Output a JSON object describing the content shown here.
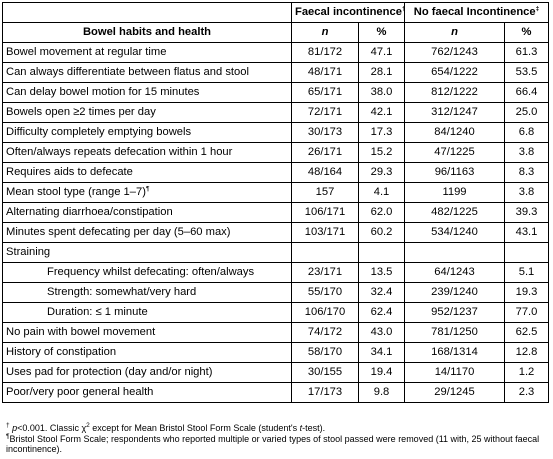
{
  "table": {
    "group_headers": {
      "faecal": "Faecal incontinence",
      "faecal_mark": "†",
      "no_faecal": "No faecal Incontinence",
      "no_faecal_mark": "‡"
    },
    "sub_headers": {
      "label": "Bowel habits and health",
      "n1": "n",
      "pct1": "%",
      "n2": "n",
      "pct2": "%"
    },
    "rows": [
      {
        "label": "Bowel movement at regular time",
        "n1": "81/172",
        "p1": "47.1",
        "n2": "762/1243",
        "p2": "61.3"
      },
      {
        "label": "Can always differentiate between flatus and stool",
        "n1": "48/171",
        "p1": "28.1",
        "n2": "654/1222",
        "p2": "53.5"
      },
      {
        "label": "Can delay bowel motion for 15 minutes",
        "n1": "65/171",
        "p1": "38.0",
        "n2": "812/1222",
        "p2": "66.4"
      },
      {
        "label": "Bowels open ≥2 times per day",
        "n1": "72/171",
        "p1": "42.1",
        "n2": "312/1247",
        "p2": "25.0"
      },
      {
        "label": "Difficulty completely emptying bowels",
        "n1": "30/173",
        "p1": "17.3",
        "n2": "84/1240",
        "p2": "6.8"
      },
      {
        "label": "Often/always repeats defecation within 1 hour",
        "n1": "26/171",
        "p1": "15.2",
        "n2": "47/1225",
        "p2": "3.8"
      },
      {
        "label": "Requires aids to defecate",
        "n1": "48/164",
        "p1": "29.3",
        "n2": "96/1163",
        "p2": "8.3"
      },
      {
        "label": "Mean stool type (range 1–7)¶",
        "n1": "157",
        "p1": "4.1",
        "n2": "1199",
        "p2": "3.8"
      },
      {
        "label": "Alternating diarrhoea/constipation",
        "n1": "106/171",
        "p1": "62.0",
        "n2": "482/1225",
        "p2": "39.3"
      },
      {
        "label": "Minutes spent defecating per day (5–60 max)",
        "n1": "103/171",
        "p1": "60.2",
        "n2": "534/1240",
        "p2": "43.1"
      },
      {
        "label": "Straining",
        "n1": "",
        "p1": "",
        "n2": "",
        "p2": ""
      },
      {
        "label": "Frequency whilst defecating: often/always",
        "n1": "23/171",
        "p1": "13.5",
        "n2": "64/1243",
        "p2": "5.1",
        "indent": true
      },
      {
        "label": "Strength: somewhat/very hard",
        "n1": "55/170",
        "p1": "32.4",
        "n2": "239/1240",
        "p2": "19.3",
        "indent": true
      },
      {
        "label": "Duration: ≤ 1 minute",
        "n1": "106/170",
        "p1": "62.4",
        "n2": "952/1237",
        "p2": "77.0",
        "indent": true
      },
      {
        "label": "No pain with bowel movement",
        "n1": "74/172",
        "p1": "43.0",
        "n2": "781/1250",
        "p2": "62.5"
      },
      {
        "label": "History of constipation",
        "n1": "58/170",
        "p1": "34.1",
        "n2": "168/1314",
        "p2": "12.8"
      },
      {
        "label": "Uses pad for protection (day and/or night)",
        "n1": "30/155",
        "p1": "19.4",
        "n2": "14/1170",
        "p2": "1.2"
      },
      {
        "label": "Poor/very poor general health",
        "n1": "17/173",
        "p1": "9.8",
        "n2": "29/1245",
        "p2": "2.3"
      }
    ]
  },
  "footnotes": {
    "note1_mark": "†",
    "note1_p": "p",
    "note1_text_a": "<0.001. Classic χ",
    "note1_sup": "2",
    "note1_text_b": " except for Mean Bristol Stool Form Scale (student's ",
    "note1_t": "t",
    "note1_text_c": "-test).",
    "note2_mark": "¶",
    "note2_text": "Bristol Stool Form Scale; respondents who reported multiple or varied types of stool passed were removed (11 with, 25 without faecal incontinence)."
  }
}
